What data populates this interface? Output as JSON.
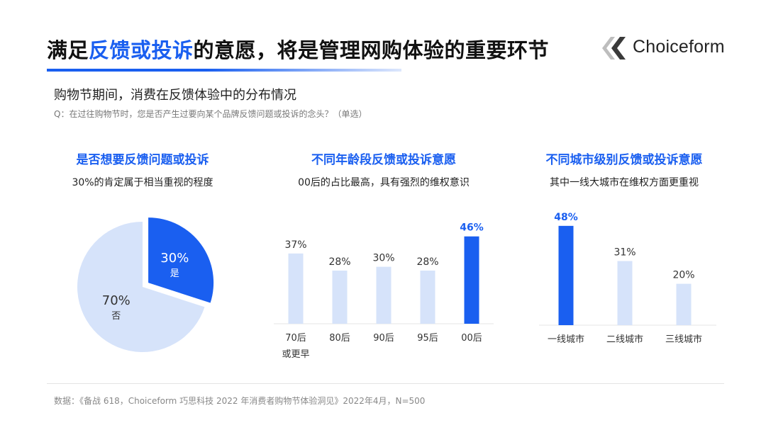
{
  "header": {
    "title_pre": "满足",
    "title_highlight": "反馈或投诉",
    "title_post": "的意愿，将是管理网购体验的重要环节",
    "logo_text": "Choiceform",
    "accent_color": "#1a5ff0"
  },
  "subtitle": "购物节期间，消费在反馈体验中的分布情况",
  "question": "Q：在过往购物节时，您是否产生过要向某个品牌反馈问题或投诉的念头？（单选）",
  "panels": [
    {
      "title": "是否想要反馈问题或投诉",
      "subtitle": "30%的肯定属于相当重视的程度"
    },
    {
      "title": "不同年龄段反馈或投诉意愿",
      "subtitle": "00后的占比最高，具有强烈的维权意识"
    },
    {
      "title": "不同城市级别反馈或投诉意愿",
      "subtitle": "其中一线大城市在维权方面更重视"
    }
  ],
  "footer": "数据：《备战 618，Choiceform 巧思科技 2022 年消费者购物节体验洞见》2022年4月，N=500",
  "chart_data": [
    {
      "type": "pie",
      "title": "是否想要反馈问题或投诉",
      "slices": [
        {
          "label": "是",
          "value": 30,
          "display": "30%",
          "color": "#1a5ff0"
        },
        {
          "label": "否",
          "value": 70,
          "display": "70%",
          "color": "#d6e3fa"
        }
      ]
    },
    {
      "type": "bar",
      "title": "不同年龄段反馈或投诉意愿",
      "categories": [
        "70后或更早",
        "80后",
        "90后",
        "95后",
        "00后"
      ],
      "category_lines": [
        [
          "70后",
          "或更早"
        ],
        [
          "80后"
        ],
        [
          "90后"
        ],
        [
          "95后"
        ],
        [
          "00后"
        ]
      ],
      "values": [
        37,
        28,
        30,
        28,
        46
      ],
      "labels": [
        "37%",
        "28%",
        "30%",
        "28%",
        "46%"
      ],
      "highlight": [
        false,
        false,
        false,
        false,
        true
      ],
      "ylim": [
        0,
        50
      ]
    },
    {
      "type": "bar",
      "title": "不同城市级别反馈或投诉意愿",
      "categories": [
        "一线城市",
        "二线城市",
        "三线城市"
      ],
      "category_lines": [
        [
          "一线城市"
        ],
        [
          "二线城市"
        ],
        [
          "三线城市"
        ]
      ],
      "values": [
        48,
        31,
        20
      ],
      "labels": [
        "48%",
        "31%",
        "20%"
      ],
      "highlight": [
        true,
        false,
        false
      ],
      "ylim": [
        0,
        50
      ]
    }
  ],
  "colors": {
    "highlight": "#1a5ff0",
    "bar": "#d6e3fa",
    "axis": "#e6e6e6"
  }
}
